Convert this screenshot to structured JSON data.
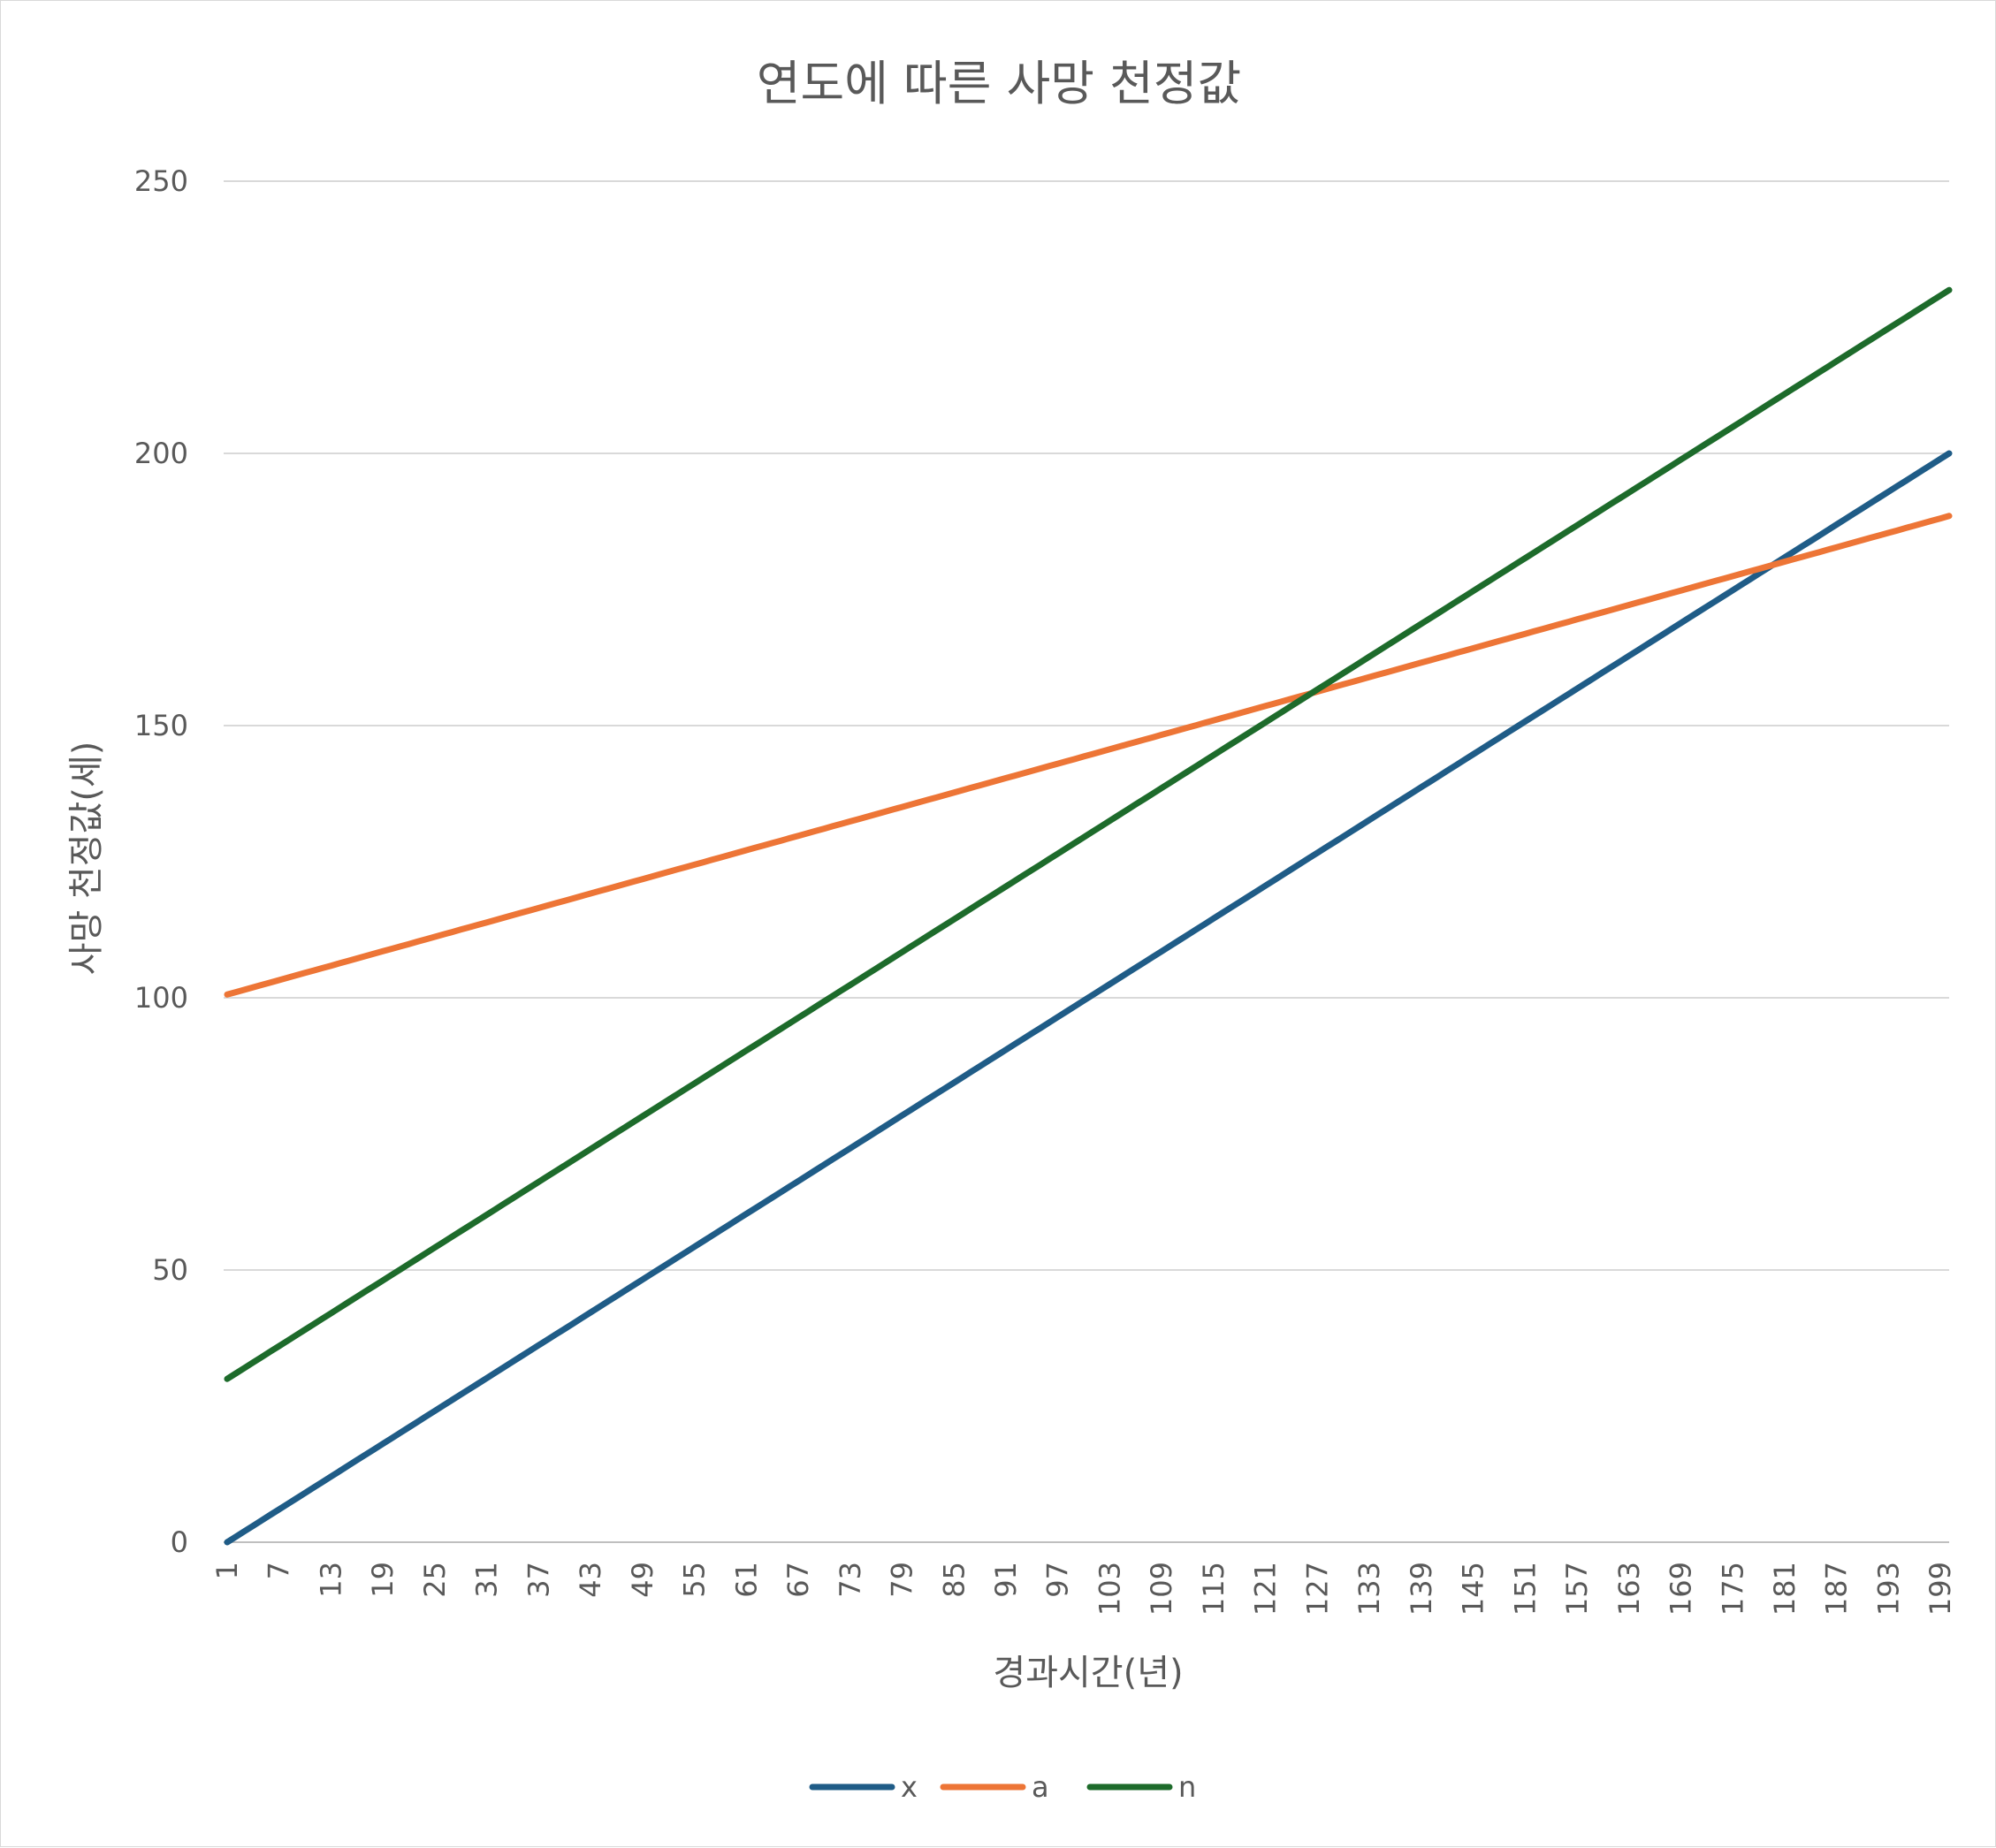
{
  "chart_data": {
    "type": "line",
    "title": "연도에 따른 사망 천정값",
    "xlabel": "경과시간(년)",
    "ylabel": "사망 천정값(세)",
    "x_range": [
      1,
      200
    ],
    "x_tick_start": 1,
    "x_tick_step": 6,
    "ylim": [
      0,
      250
    ],
    "y_ticks": [
      0,
      50,
      100,
      150,
      200,
      250
    ],
    "grid": true,
    "legend_position": "bottom",
    "series": [
      {
        "name": "x",
        "color": "#1f5c87",
        "start": 0,
        "end": 200
      },
      {
        "name": "a",
        "color": "#ed7536",
        "start": 100.6,
        "end": 188.5
      },
      {
        "name": "n",
        "color": "#1d6b2b",
        "start": 30,
        "end": 230
      }
    ]
  }
}
